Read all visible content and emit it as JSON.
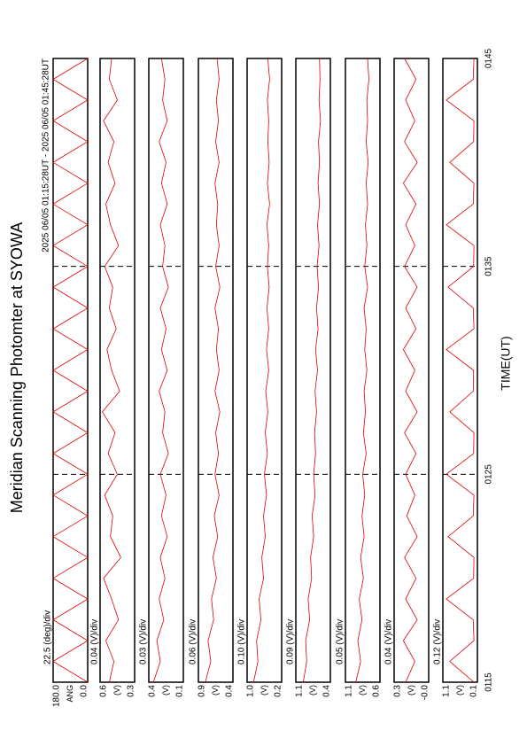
{
  "title": "Meridian Scanning Photomter at SYOWA",
  "subtitle": "2025 06/05 01:15:28UT - 2025 06/05 01:45:28UT",
  "xlabel": "TIME(UT)",
  "xlim": [
    0,
    30
  ],
  "xticks": [
    {
      "value": 0,
      "label": "0115"
    },
    {
      "value": 10,
      "label": "0125"
    },
    {
      "value": 20,
      "label": "0135"
    },
    {
      "value": 30,
      "label": "0145"
    }
  ],
  "x": [
    0,
    1,
    2,
    3,
    4,
    5,
    6,
    7,
    8,
    9,
    10,
    11,
    12,
    13,
    14,
    15,
    16,
    17,
    18,
    19,
    20,
    21,
    22,
    23,
    24,
    25,
    26,
    27,
    28,
    29,
    30
  ],
  "chart_data": [
    {
      "type": "line",
      "scale": "22.5 (deg)/div",
      "ylabel": "ANG",
      "color": "#e00000",
      "ylim": [
        0,
        180
      ],
      "yticks": [
        {
          "value": 0,
          "label": "0.0"
        },
        {
          "value": 180,
          "label": "180.0"
        }
      ],
      "values": [
        0,
        180,
        0,
        180,
        0,
        180,
        0,
        180,
        0,
        180,
        0,
        180,
        0,
        180,
        0,
        180,
        0,
        180,
        0,
        180,
        0,
        180,
        0,
        180,
        0,
        180,
        0,
        180,
        0,
        180,
        0
      ]
    },
    {
      "type": "line",
      "scale": "0.04 (V)/div",
      "ylabel": "(V)",
      "color": "#e00000",
      "ylim": [
        0.3,
        0.6
      ],
      "yticks": [
        0.3,
        0.6
      ],
      "values": [
        0.52,
        0.48,
        0.55,
        0.44,
        0.5,
        0.57,
        0.42,
        0.51,
        0.49,
        0.56,
        0.45,
        0.53,
        0.47,
        0.58,
        0.43,
        0.5,
        0.54,
        0.46,
        0.52,
        0.49,
        0.56,
        0.44,
        0.51,
        0.55,
        0.47,
        0.53,
        0.48,
        0.57,
        0.45,
        0.52,
        0.5
      ]
    },
    {
      "type": "line",
      "scale": "0.03 (V)/div",
      "ylabel": "(V)",
      "color": "#e00000",
      "ylim": [
        0.1,
        0.4
      ],
      "yticks": [
        0.1,
        0.4
      ],
      "values": [
        0.36,
        0.3,
        0.33,
        0.27,
        0.31,
        0.26,
        0.3,
        0.24,
        0.29,
        0.25,
        0.3,
        0.23,
        0.28,
        0.26,
        0.31,
        0.24,
        0.29,
        0.25,
        0.3,
        0.23,
        0.28,
        0.26,
        0.3,
        0.24,
        0.29,
        0.25,
        0.31,
        0.24,
        0.28,
        0.26,
        0.29
      ]
    },
    {
      "type": "line",
      "scale": "0.06 (V)/div",
      "ylabel": "(V)",
      "color": "#e00000",
      "ylim": [
        0.4,
        0.9
      ],
      "yticks": [
        0.4,
        0.9
      ],
      "values": [
        0.8,
        0.72,
        0.76,
        0.68,
        0.71,
        0.64,
        0.69,
        0.62,
        0.67,
        0.6,
        0.66,
        0.61,
        0.65,
        0.59,
        0.66,
        0.6,
        0.64,
        0.61,
        0.66,
        0.59,
        0.65,
        0.6,
        0.64,
        0.62,
        0.66,
        0.6,
        0.65,
        0.61,
        0.64,
        0.6,
        0.63
      ]
    },
    {
      "type": "line",
      "scale": "0.10 (V)/div",
      "ylabel": "(V)",
      "color": "#e00000",
      "ylim": [
        0.2,
        1.0
      ],
      "yticks": [
        0.2,
        {
          "value": 1.0,
          "label": "1.0"
        }
      ],
      "values": [
        0.85,
        0.75,
        0.78,
        0.68,
        0.72,
        0.62,
        0.66,
        0.58,
        0.62,
        0.55,
        0.6,
        0.53,
        0.58,
        0.52,
        0.57,
        0.5,
        0.55,
        0.5,
        0.54,
        0.49,
        0.53,
        0.5,
        0.54,
        0.48,
        0.53,
        0.49,
        0.52,
        0.5,
        0.53,
        0.48,
        0.52
      ]
    },
    {
      "type": "line",
      "scale": "0.09 (V)/div",
      "ylabel": "(V)",
      "color": "#e00000",
      "ylim": [
        0.4,
        1.1
      ],
      "yticks": [
        0.4,
        1.1
      ],
      "values": [
        0.95,
        0.88,
        0.9,
        0.82,
        0.85,
        0.78,
        0.8,
        0.74,
        0.77,
        0.71,
        0.74,
        0.7,
        0.72,
        0.68,
        0.71,
        0.66,
        0.7,
        0.65,
        0.68,
        0.64,
        0.67,
        0.63,
        0.66,
        0.62,
        0.65,
        0.62,
        0.64,
        0.6,
        0.63,
        0.61,
        0.62
      ]
    },
    {
      "type": "line",
      "scale": "0.05 (V)/div",
      "ylabel": "(V)",
      "color": "#e00000",
      "ylim": [
        0.6,
        1.1
      ],
      "yticks": [
        0.6,
        1.1
      ],
      "values": [
        0.95,
        0.88,
        0.92,
        0.86,
        0.9,
        0.84,
        0.88,
        0.83,
        0.86,
        0.82,
        0.85,
        0.8,
        0.84,
        0.81,
        0.83,
        0.79,
        0.82,
        0.8,
        0.83,
        0.78,
        0.82,
        0.79,
        0.81,
        0.78,
        0.8,
        0.77,
        0.8,
        0.78,
        0.79,
        0.76,
        0.78
      ]
    },
    {
      "type": "line",
      "scale": "0.04 (V)/div",
      "ylabel": "(V)",
      "color": "#e00000",
      "ylim": [
        0,
        0.3
      ],
      "yticks": [
        {
          "value": 0,
          "label": "-0.0"
        },
        0.3
      ],
      "values": [
        0.2,
        0.12,
        0.22,
        0.1,
        0.2,
        0.11,
        0.21,
        0.1,
        0.19,
        0.12,
        0.2,
        0.11,
        0.21,
        0.1,
        0.2,
        0.12,
        0.22,
        0.11,
        0.2,
        0.1,
        0.21,
        0.12,
        0.2,
        0.11,
        0.22,
        0.1,
        0.21,
        0.12,
        0.2,
        0.11,
        0.21
      ]
    },
    {
      "type": "line",
      "scale": "0.12 (V)/div",
      "ylabel": "(V)",
      "color": "#e00000",
      "ylim": [
        0.1,
        1.1
      ],
      "yticks": [
        0.1,
        1.1
      ],
      "values": [
        0.2,
        0.9,
        0.2,
        0.22,
        1.0,
        0.21,
        0.2,
        0.95,
        0.22,
        0.2,
        1.0,
        0.21,
        0.2,
        0.9,
        0.22,
        0.21,
        1.0,
        0.2,
        0.22,
        0.95,
        0.21,
        0.2,
        1.0,
        0.22,
        0.2,
        0.9,
        0.21,
        0.2,
        1.0,
        0.22,
        0.2
      ]
    }
  ]
}
